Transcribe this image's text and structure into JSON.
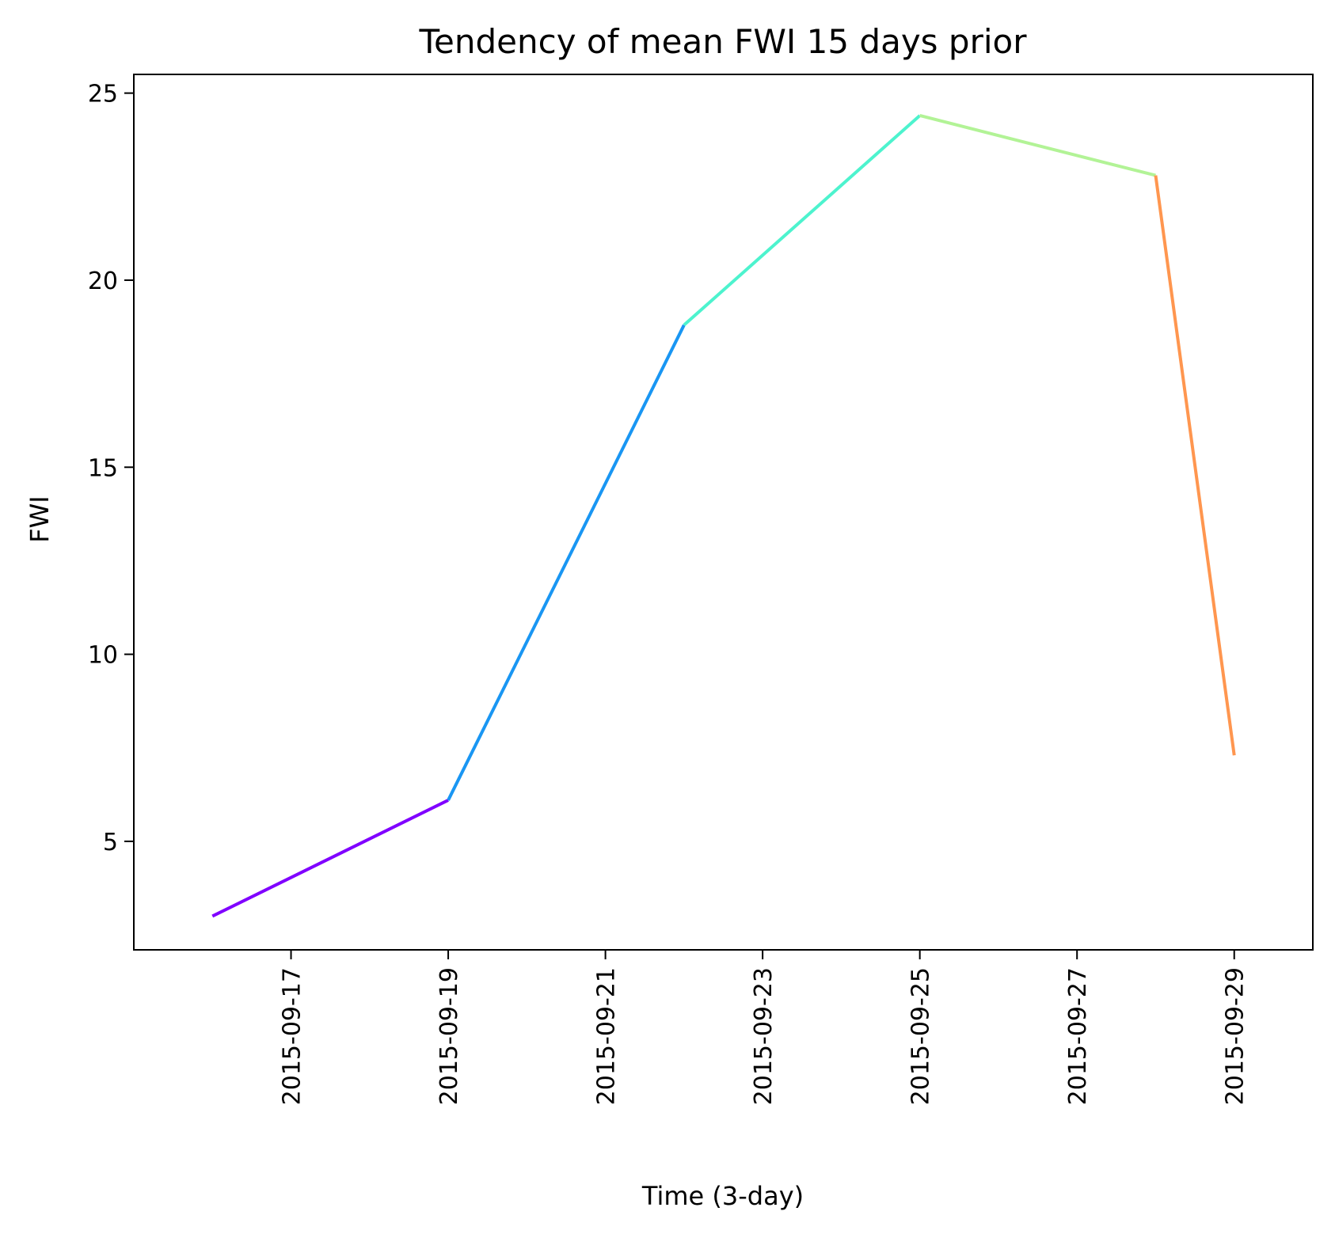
{
  "chart_data": {
    "type": "line",
    "title": "Tendency of mean FWI 15 days prior",
    "xlabel": "Time (3-day)",
    "ylabel": "FWI",
    "x": [
      "2015-09-16",
      "2015-09-19",
      "2015-09-22",
      "2015-09-25",
      "2015-09-28",
      "2015-09-29"
    ],
    "series": [
      {
        "values": [
          3.0,
          6.1,
          18.8,
          24.4,
          22.8,
          7.3
        ]
      }
    ],
    "segment_colors": [
      "#8000ff",
      "#1996f3",
      "#4df3ce",
      "#b2f396",
      "#ff964f"
    ],
    "xlim": [
      "2015-09-15",
      "2015-09-30"
    ],
    "ylim": [
      2.1,
      25.5
    ],
    "xticks": [
      "2015-09-17",
      "2015-09-19",
      "2015-09-21",
      "2015-09-23",
      "2015-09-25",
      "2015-09-27",
      "2015-09-29"
    ],
    "yticks": [
      5,
      10,
      15,
      20,
      25
    ],
    "grid": false
  }
}
